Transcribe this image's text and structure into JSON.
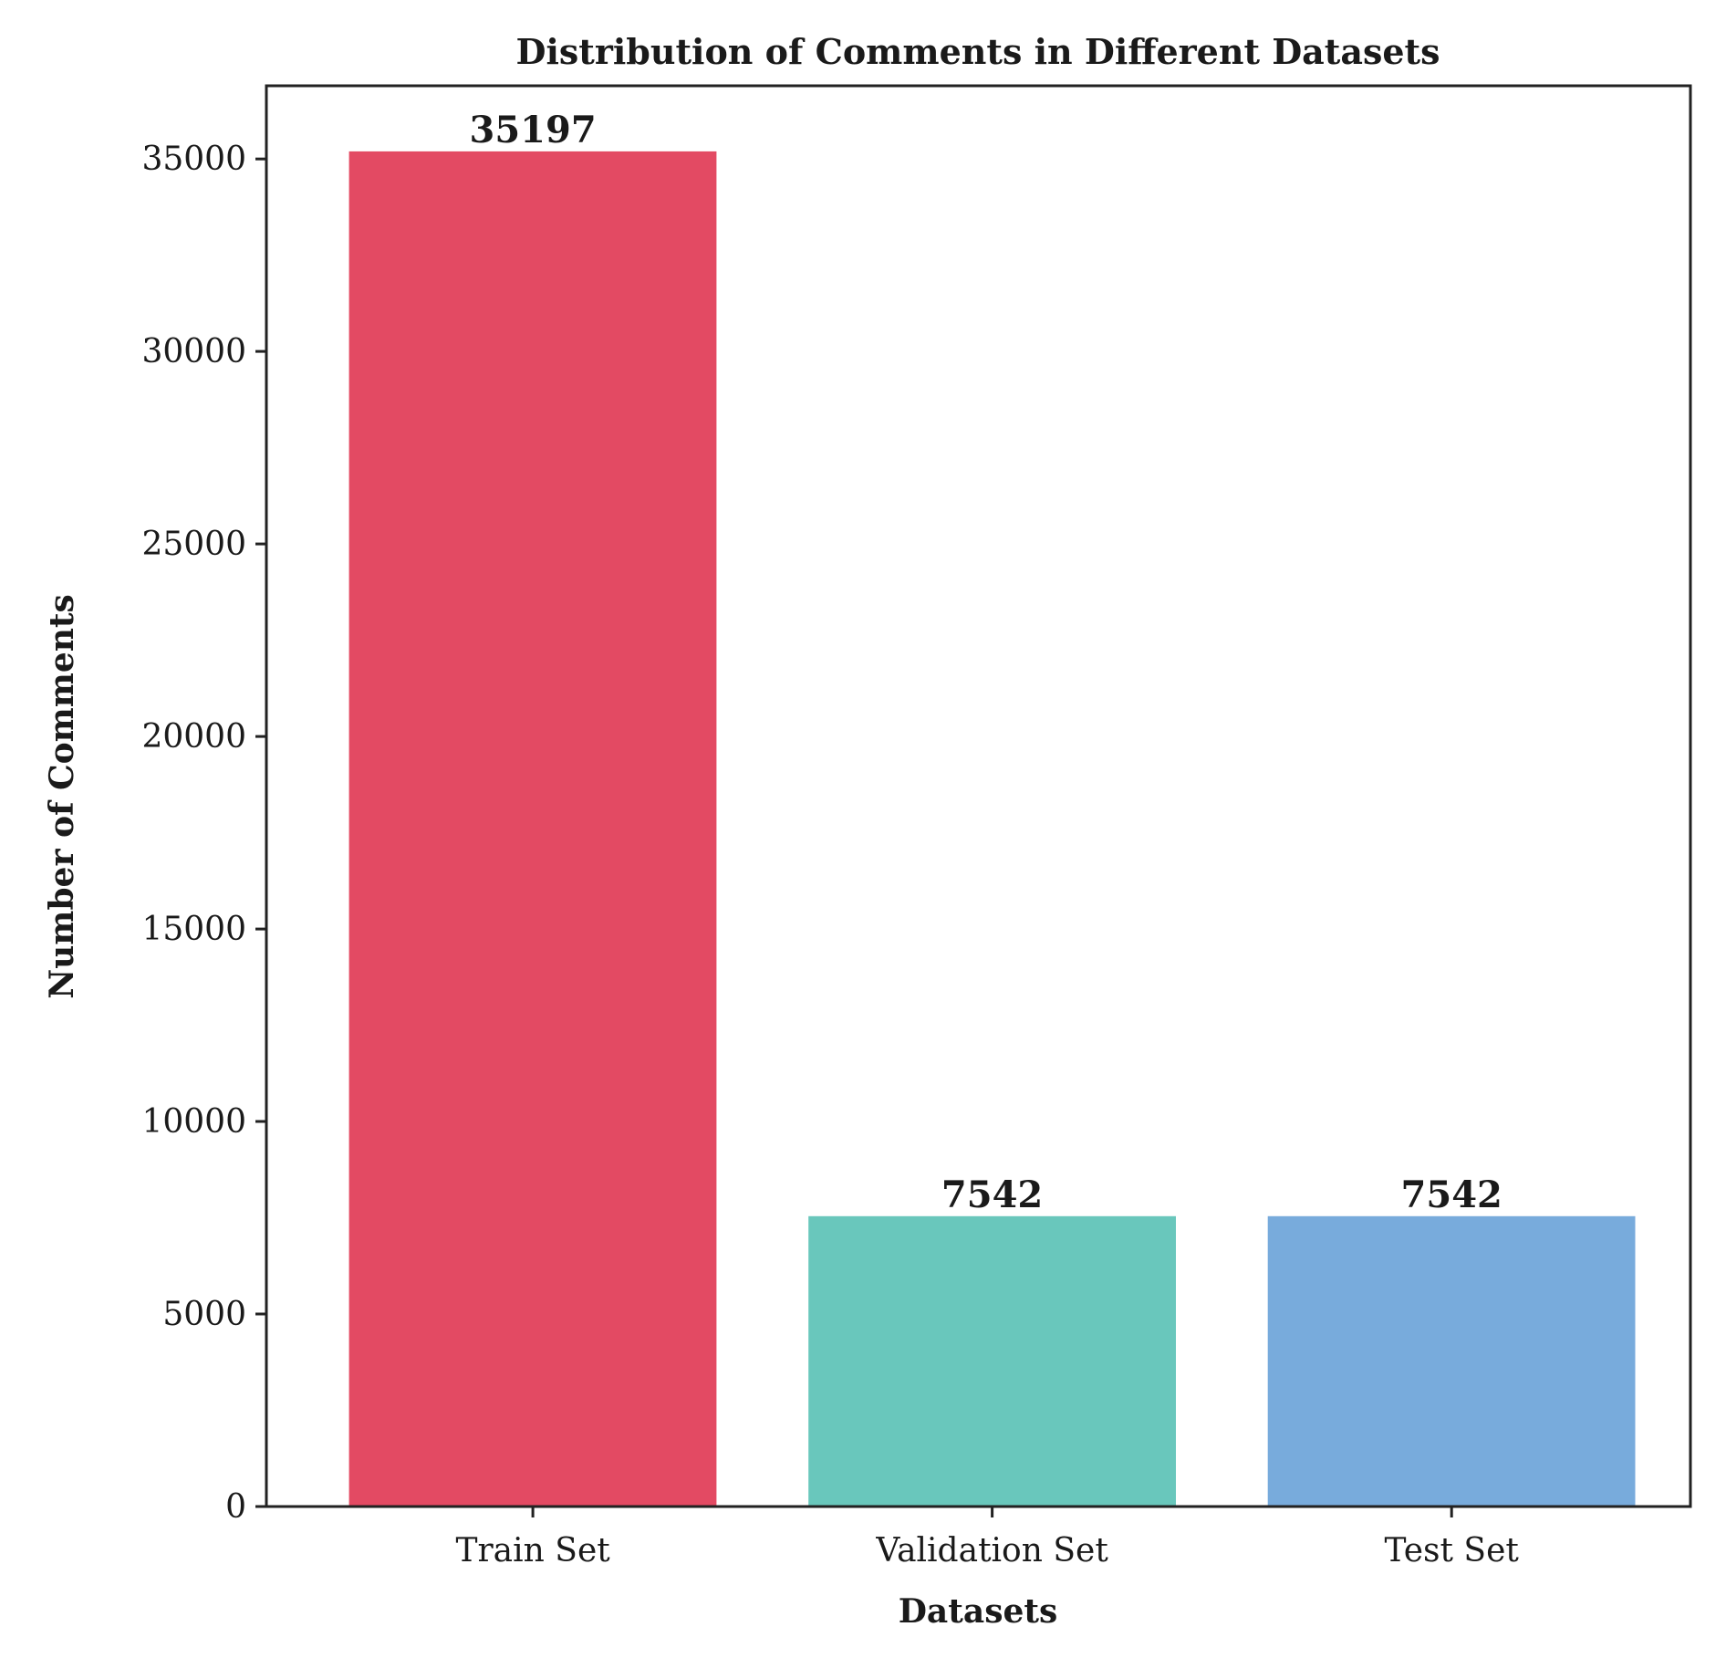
{
  "chart_data": {
    "type": "bar",
    "title": "Distribution of Comments in Different Datasets",
    "xlabel": "Datasets",
    "ylabel": "Number of Comments",
    "categories": [
      "Train Set",
      "Validation Set",
      "Test Set"
    ],
    "values": [
      35197,
      7542,
      7542
    ],
    "value_labels": [
      "35197",
      "7542",
      "7542"
    ],
    "colors": [
      "#e34a63",
      "#69c7bc",
      "#78abdc"
    ],
    "ylim": [
      0,
      36900
    ],
    "yticks": [
      0,
      5000,
      10000,
      15000,
      20000,
      25000,
      30000,
      35000
    ],
    "grid": false,
    "legend": "none"
  }
}
